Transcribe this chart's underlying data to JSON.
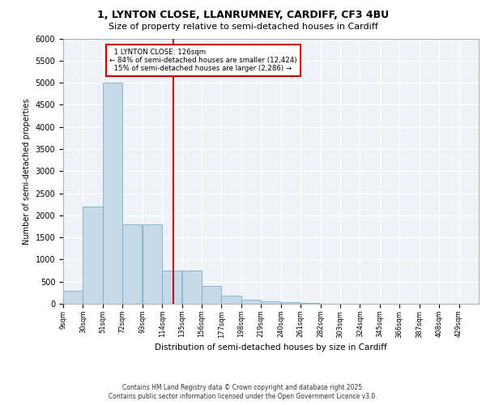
{
  "title_line1": "1, LYNTON CLOSE, LLANRUMNEY, CARDIFF, CF3 4BU",
  "title_line2": "Size of property relative to semi-detached houses in Cardiff",
  "xlabel": "Distribution of semi-detached houses by size in Cardiff",
  "ylabel": "Number of semi-detached properties",
  "footer_line1": "Contains HM Land Registry data © Crown copyright and database right 2025.",
  "footer_line2": "Contains public sector information licensed under the Open Government Licence v3.0.",
  "property_size": 126,
  "property_label": "1 LYNTON CLOSE: 126sqm",
  "pct_smaller": 84,
  "count_smaller": 12424,
  "pct_larger": 15,
  "count_larger": 2286,
  "bin_labels": [
    "9sqm",
    "30sqm",
    "51sqm",
    "72sqm",
    "93sqm",
    "114sqm",
    "135sqm",
    "156sqm",
    "177sqm",
    "198sqm",
    "219sqm",
    "240sqm",
    "261sqm",
    "282sqm",
    "303sqm",
    "324sqm",
    "345sqm",
    "366sqm",
    "387sqm",
    "408sqm",
    "429sqm"
  ],
  "bin_edges": [
    9,
    30,
    51,
    72,
    93,
    114,
    135,
    156,
    177,
    198,
    219,
    240,
    261,
    282,
    303,
    324,
    345,
    366,
    387,
    408,
    429,
    450
  ],
  "bar_values": [
    300,
    2200,
    5000,
    1800,
    1800,
    750,
    750,
    400,
    175,
    100,
    60,
    30,
    10,
    5,
    2,
    1,
    0,
    0,
    0,
    0,
    0
  ],
  "bar_color": "#c6d9e8",
  "bar_edge_color": "#7baec8",
  "annotation_box_color": "#cc0000",
  "vline_color": "#cc0000",
  "bg_color": "#eef2f7",
  "grid_color": "#ffffff",
  "ylim": [
    0,
    6000
  ],
  "yticks": [
    0,
    500,
    1000,
    1500,
    2000,
    2500,
    3000,
    3500,
    4000,
    4500,
    5000,
    5500,
    6000
  ]
}
